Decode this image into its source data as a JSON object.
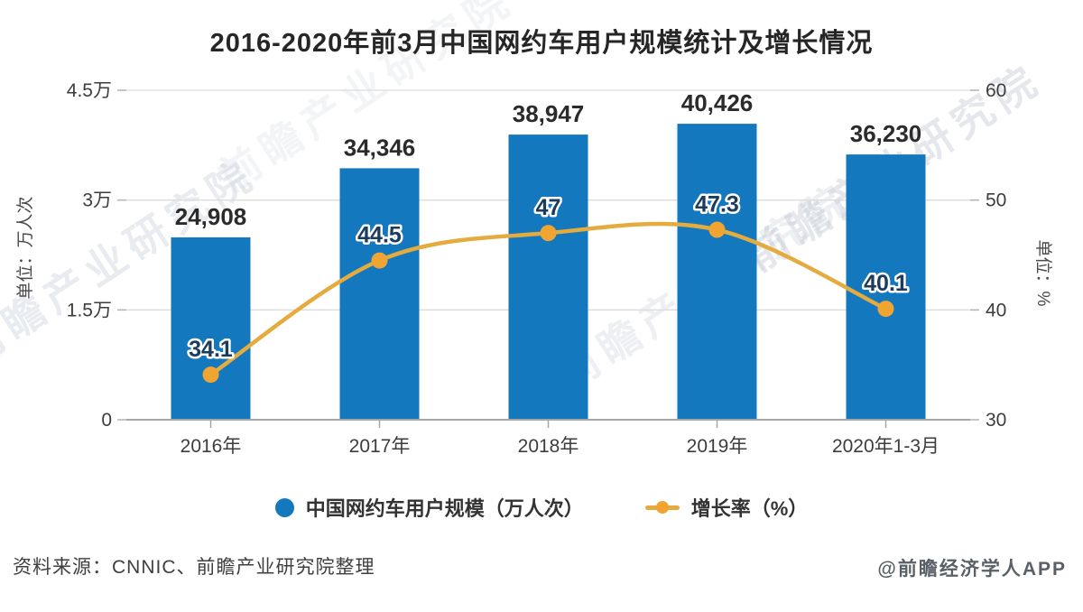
{
  "title": "2016-2020年前3月中国网约车用户规模统计及增长情况",
  "chart_data": {
    "type": "bar+line",
    "categories": [
      "2016年",
      "2017年",
      "2018年",
      "2019年",
      "2020年1-3月"
    ],
    "series": [
      {
        "name": "中国网约车用户规模（万人次）",
        "type": "bar",
        "values": [
          24908,
          34346,
          38947,
          40426,
          36230
        ],
        "labels": [
          "24,908",
          "34,346",
          "38,947",
          "40,426",
          "36,230"
        ],
        "color": "#1478BE",
        "axis": "left"
      },
      {
        "name": "增长率（%）",
        "type": "line",
        "values": [
          34.1,
          44.5,
          47,
          47.3,
          40.1
        ],
        "labels": [
          "34.1",
          "44.5",
          "47",
          "47.3",
          "40.1"
        ],
        "color": "#E4AB3E",
        "marker_color": "#F0A432",
        "label_color": "#1C3C5E",
        "axis": "right"
      }
    ],
    "left_axis": {
      "label": "单位：万人次",
      "min": 0,
      "max": 45000,
      "ticks": [
        {
          "label": "0",
          "value": 0
        },
        {
          "label": "1.5万",
          "value": 15000
        },
        {
          "label": "3万",
          "value": 30000
        },
        {
          "label": "4.5万",
          "value": 45000
        }
      ]
    },
    "right_axis": {
      "label": "单位：%",
      "min": 30,
      "max": 60,
      "ticks": [
        {
          "label": "30",
          "value": 30
        },
        {
          "label": "40",
          "value": 40
        },
        {
          "label": "50",
          "value": 50
        },
        {
          "label": "60",
          "value": 60
        }
      ]
    },
    "grid": true,
    "legend_position": "bottom"
  },
  "footer": {
    "source": "资料来源：CNNIC、前瞻产业研究院整理",
    "credit": "@前瞻经济学人APP"
  },
  "watermark": {
    "text": "前瞻产业研究院"
  }
}
